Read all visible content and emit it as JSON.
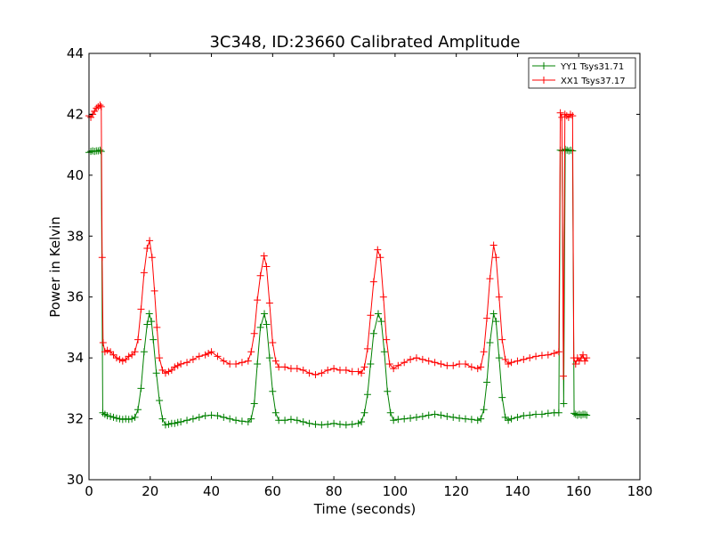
{
  "chart_data": {
    "type": "line",
    "title": "3C348, ID:23660 Calibrated Amplitude",
    "xlabel": "Time (seconds)",
    "ylabel": "Power in Kelvin",
    "xlim": [
      0,
      180
    ],
    "ylim": [
      30,
      44
    ],
    "xticks": [
      0,
      20,
      40,
      60,
      80,
      100,
      120,
      140,
      160,
      180
    ],
    "yticks": [
      30,
      32,
      34,
      36,
      38,
      40,
      42,
      44
    ],
    "legend_position": "top-right",
    "marker": "plus",
    "series": [
      {
        "name": "YY1 Tsys31.71",
        "color": "#008000",
        "points": [
          [
            0.0,
            40.75
          ],
          [
            0.6,
            40.78
          ],
          [
            1.2,
            40.8
          ],
          [
            1.8,
            40.78
          ],
          [
            2.4,
            40.8
          ],
          [
            3.0,
            40.8
          ],
          [
            3.6,
            40.82
          ],
          [
            4.0,
            40.78
          ],
          [
            4.5,
            32.2
          ],
          [
            5.2,
            32.15
          ],
          [
            6.0,
            32.1
          ],
          [
            7,
            32.08
          ],
          [
            8,
            32.05
          ],
          [
            9,
            32.02
          ],
          [
            10,
            32.0
          ],
          [
            11,
            31.98
          ],
          [
            12,
            32.0
          ],
          [
            13,
            31.98
          ],
          [
            14,
            32.0
          ],
          [
            15,
            32.05
          ],
          [
            16,
            32.3
          ],
          [
            17,
            33.0
          ],
          [
            18,
            34.2
          ],
          [
            19,
            35.1
          ],
          [
            19.7,
            35.45
          ],
          [
            20.4,
            35.2
          ],
          [
            21,
            34.6
          ],
          [
            22,
            33.5
          ],
          [
            23,
            32.6
          ],
          [
            24,
            32.0
          ],
          [
            25,
            31.8
          ],
          [
            26,
            31.82
          ],
          [
            27,
            31.85
          ],
          [
            28,
            31.85
          ],
          [
            29,
            31.88
          ],
          [
            30,
            31.9
          ],
          [
            32,
            31.95
          ],
          [
            34,
            32.0
          ],
          [
            36,
            32.05
          ],
          [
            38,
            32.1
          ],
          [
            40,
            32.12
          ],
          [
            42,
            32.1
          ],
          [
            44,
            32.05
          ],
          [
            46,
            32.0
          ],
          [
            48,
            31.95
          ],
          [
            50,
            31.92
          ],
          [
            52,
            31.9
          ],
          [
            53,
            32.0
          ],
          [
            54,
            32.5
          ],
          [
            55,
            33.8
          ],
          [
            56,
            35.0
          ],
          [
            57.3,
            35.45
          ],
          [
            58,
            35.1
          ],
          [
            59,
            34.0
          ],
          [
            60,
            32.9
          ],
          [
            61,
            32.2
          ],
          [
            62,
            31.95
          ],
          [
            64,
            31.95
          ],
          [
            66,
            31.98
          ],
          [
            68,
            31.95
          ],
          [
            70,
            31.9
          ],
          [
            72,
            31.85
          ],
          [
            74,
            31.82
          ],
          [
            76,
            31.8
          ],
          [
            78,
            31.82
          ],
          [
            80,
            31.85
          ],
          [
            82,
            31.82
          ],
          [
            84,
            31.8
          ],
          [
            86,
            31.82
          ],
          [
            88,
            31.85
          ],
          [
            89,
            31.9
          ],
          [
            90,
            32.2
          ],
          [
            91,
            32.8
          ],
          [
            92,
            33.8
          ],
          [
            93,
            34.8
          ],
          [
            94.5,
            35.45
          ],
          [
            95.5,
            35.2
          ],
          [
            96.5,
            34.2
          ],
          [
            97.5,
            32.9
          ],
          [
            98.5,
            32.2
          ],
          [
            99.5,
            31.95
          ],
          [
            101,
            31.98
          ],
          [
            103,
            32.0
          ],
          [
            105,
            32.02
          ],
          [
            107,
            32.05
          ],
          [
            109,
            32.08
          ],
          [
            111,
            32.12
          ],
          [
            113,
            32.15
          ],
          [
            115,
            32.12
          ],
          [
            117,
            32.08
          ],
          [
            119,
            32.05
          ],
          [
            121,
            32.02
          ],
          [
            123,
            32.0
          ],
          [
            125,
            31.98
          ],
          [
            127,
            31.95
          ],
          [
            128,
            32.0
          ],
          [
            129,
            32.3
          ],
          [
            130,
            33.2
          ],
          [
            131,
            34.5
          ],
          [
            132.2,
            35.45
          ],
          [
            133,
            35.2
          ],
          [
            134,
            34.0
          ],
          [
            135,
            32.7
          ],
          [
            136,
            32.05
          ],
          [
            137,
            31.95
          ],
          [
            138,
            32.0
          ],
          [
            140,
            32.05
          ],
          [
            142,
            32.1
          ],
          [
            144,
            32.12
          ],
          [
            146,
            32.15
          ],
          [
            148,
            32.15
          ],
          [
            150,
            32.18
          ],
          [
            152,
            32.2
          ],
          [
            153.5,
            32.2
          ],
          [
            154,
            40.82
          ],
          [
            154.6,
            40.8
          ],
          [
            155.1,
            32.5
          ],
          [
            155.6,
            40.85
          ],
          [
            156.2,
            40.82
          ],
          [
            156.8,
            40.8
          ],
          [
            157.4,
            40.82
          ],
          [
            158.0,
            40.8
          ],
          [
            158.5,
            32.18
          ],
          [
            159.0,
            32.15
          ],
          [
            159.6,
            32.12
          ],
          [
            160.2,
            32.15
          ],
          [
            160.8,
            32.12
          ],
          [
            161.4,
            32.15
          ],
          [
            162.0,
            32.15
          ],
          [
            162.6,
            32.12
          ]
        ]
      },
      {
        "name": "XX1 Tsys37.17",
        "color": "#ff0000",
        "points": [
          [
            0.0,
            41.95
          ],
          [
            0.6,
            41.9
          ],
          [
            1.2,
            42.0
          ],
          [
            1.8,
            42.1
          ],
          [
            2.4,
            42.2
          ],
          [
            3.0,
            42.25
          ],
          [
            3.6,
            42.3
          ],
          [
            4.0,
            42.25
          ],
          [
            4.3,
            37.3
          ],
          [
            4.6,
            34.5
          ],
          [
            5.2,
            34.2
          ],
          [
            6,
            34.25
          ],
          [
            7,
            34.2
          ],
          [
            8,
            34.1
          ],
          [
            9,
            34.0
          ],
          [
            10,
            33.95
          ],
          [
            11,
            33.9
          ],
          [
            12,
            33.95
          ],
          [
            13,
            34.05
          ],
          [
            14,
            34.1
          ],
          [
            15,
            34.2
          ],
          [
            16,
            34.6
          ],
          [
            17,
            35.6
          ],
          [
            18,
            36.8
          ],
          [
            19,
            37.6
          ],
          [
            19.8,
            37.85
          ],
          [
            20.6,
            37.3
          ],
          [
            21.4,
            36.2
          ],
          [
            22.2,
            35.0
          ],
          [
            23,
            34.0
          ],
          [
            24,
            33.6
          ],
          [
            25,
            33.5
          ],
          [
            26,
            33.55
          ],
          [
            27,
            33.6
          ],
          [
            28,
            33.7
          ],
          [
            29,
            33.75
          ],
          [
            30,
            33.8
          ],
          [
            32,
            33.85
          ],
          [
            34,
            33.95
          ],
          [
            36,
            34.05
          ],
          [
            38,
            34.1
          ],
          [
            39,
            34.15
          ],
          [
            40,
            34.2
          ],
          [
            42,
            34.05
          ],
          [
            44,
            33.9
          ],
          [
            46,
            33.8
          ],
          [
            48,
            33.8
          ],
          [
            50,
            33.85
          ],
          [
            52,
            33.9
          ],
          [
            53,
            34.2
          ],
          [
            54,
            34.8
          ],
          [
            55,
            35.9
          ],
          [
            56,
            36.7
          ],
          [
            57.2,
            37.35
          ],
          [
            58,
            37.0
          ],
          [
            59,
            35.8
          ],
          [
            60,
            34.5
          ],
          [
            61,
            33.9
          ],
          [
            62,
            33.7
          ],
          [
            64,
            33.7
          ],
          [
            66,
            33.65
          ],
          [
            68,
            33.65
          ],
          [
            70,
            33.6
          ],
          [
            72,
            33.5
          ],
          [
            74,
            33.45
          ],
          [
            76,
            33.5
          ],
          [
            78,
            33.6
          ],
          [
            80,
            33.65
          ],
          [
            82,
            33.6
          ],
          [
            84,
            33.6
          ],
          [
            86,
            33.55
          ],
          [
            88,
            33.55
          ],
          [
            89,
            33.5
          ],
          [
            90,
            33.7
          ],
          [
            91,
            34.3
          ],
          [
            92,
            35.4
          ],
          [
            93,
            36.5
          ],
          [
            94.3,
            37.55
          ],
          [
            95.2,
            37.3
          ],
          [
            96.2,
            36.0
          ],
          [
            97.2,
            34.6
          ],
          [
            98.2,
            33.8
          ],
          [
            99.5,
            33.65
          ],
          [
            101,
            33.75
          ],
          [
            103,
            33.85
          ],
          [
            105,
            33.95
          ],
          [
            107,
            34.0
          ],
          [
            109,
            33.95
          ],
          [
            111,
            33.9
          ],
          [
            113,
            33.85
          ],
          [
            115,
            33.8
          ],
          [
            117,
            33.75
          ],
          [
            119,
            33.75
          ],
          [
            121,
            33.8
          ],
          [
            123,
            33.8
          ],
          [
            125,
            33.7
          ],
          [
            127,
            33.65
          ],
          [
            128,
            33.7
          ],
          [
            129,
            34.2
          ],
          [
            130,
            35.3
          ],
          [
            131,
            36.6
          ],
          [
            132.2,
            37.7
          ],
          [
            133,
            37.3
          ],
          [
            134,
            36.0
          ],
          [
            135,
            34.6
          ],
          [
            136,
            33.95
          ],
          [
            137,
            33.8
          ],
          [
            138,
            33.85
          ],
          [
            140,
            33.9
          ],
          [
            142,
            33.95
          ],
          [
            144,
            34.0
          ],
          [
            146,
            34.05
          ],
          [
            148,
            34.08
          ],
          [
            150,
            34.1
          ],
          [
            152,
            34.15
          ],
          [
            153.5,
            34.2
          ],
          [
            154,
            42.05
          ],
          [
            154.5,
            41.9
          ],
          [
            155,
            33.4
          ],
          [
            155.5,
            42.0
          ],
          [
            156.1,
            41.95
          ],
          [
            156.7,
            41.9
          ],
          [
            157.3,
            42.0
          ],
          [
            158.0,
            41.95
          ],
          [
            158.4,
            34.0
          ],
          [
            159.0,
            33.8
          ],
          [
            159.6,
            34.0
          ],
          [
            160.2,
            33.9
          ],
          [
            160.8,
            34.0
          ],
          [
            161.4,
            34.1
          ],
          [
            162.0,
            33.9
          ],
          [
            162.6,
            34.0
          ]
        ]
      }
    ]
  }
}
